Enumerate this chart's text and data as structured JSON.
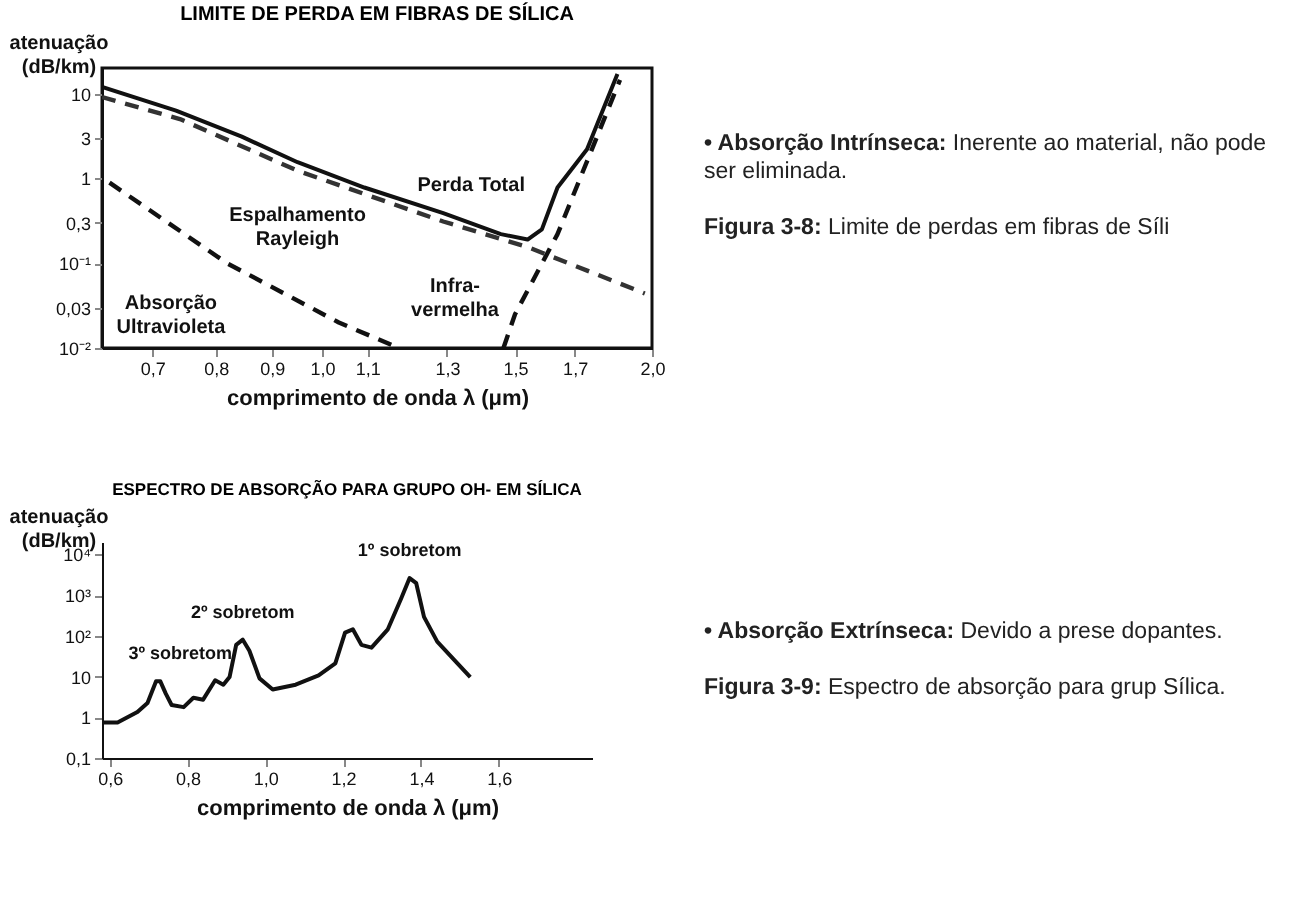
{
  "chart_data": [
    {
      "type": "line",
      "title": "LIMITE DE PERDA EM FIBRAS DE SÍLICA",
      "xlabel": "comprimento de onda λ (μm)",
      "ylabel": "atenuação\n(dB/km)",
      "log": "xy",
      "xlim": [
        0.63,
        2.0
      ],
      "xticks": [
        {
          "value": 0.7,
          "label": "0,7"
        },
        {
          "value": 0.8,
          "label": "0,8"
        },
        {
          "value": 0.9,
          "label": "0,9"
        },
        {
          "value": 1.0,
          "label": "1,0"
        },
        {
          "value": 1.1,
          "label": "1,1"
        },
        {
          "value": 1.3,
          "label": "1,3"
        },
        {
          "value": 1.5,
          "label": "1,5"
        },
        {
          "value": 1.7,
          "label": "1,7"
        },
        {
          "value": 2.0,
          "label": "2,0"
        }
      ],
      "ylim": [
        0.01,
        20
      ],
      "yticks": [
        {
          "value": 0.01,
          "label": "10⁻²"
        },
        {
          "value": 0.03,
          "label": "0,03"
        },
        {
          "value": 0.1,
          "label": "10⁻¹"
        },
        {
          "value": 0.3,
          "label": "0,3"
        },
        1,
        3,
        10
      ],
      "series": [
        {
          "color": "#111111",
          "line_style": "solid",
          "x": [
            0.63,
            0.736,
            0.845,
            0.95,
            1.093,
            1.29,
            1.456,
            1.54,
            1.587,
            1.64,
            1.745,
            1.86
          ],
          "values": [
            12,
            6.3,
            3.1,
            1.55,
            0.78,
            0.39,
            0.22,
            0.19,
            0.25,
            0.78,
            2.2,
            17
          ]
        },
        {
          "color": "#333333",
          "line_style": "dashed",
          "x": [
            0.63,
            0.742,
            0.95,
            1.29,
            1.54,
            1.97
          ],
          "values": [
            9.1,
            5.0,
            1.23,
            0.31,
            0.155,
            0.044
          ]
        },
        {
          "color": "#111111",
          "line_style": "dashed",
          "x": [
            0.64,
            0.819,
            1.036,
            1.175
          ],
          "values": [
            0.89,
            0.1,
            0.02,
            0.01
          ]
        },
        {
          "color": "#111111",
          "line_style": "dashed",
          "x": [
            1.464,
            1.5,
            1.64,
            1.87
          ],
          "values": [
            0.01,
            0.025,
            0.22,
            14.5
          ]
        }
      ],
      "annotations": [
        {
          "text": "Perda Total",
          "x": 1.29,
          "y": 0.39
        },
        {
          "text": "Espalhamento\nRayleigh",
          "x": 0.95,
          "y": 1.23
        },
        {
          "text": "Absorção\nUltravioleta",
          "x": 0.819,
          "y": 0.1
        },
        {
          "text": "Infra-\nvermelha",
          "x": 1.5,
          "y": 0.025
        },
        "• Absorção Intrínseca: Inerente ao material, não pode ser eliminada.",
        "Figura 3-8: Limite de perdas em fibras de Síli"
      ]
    },
    {
      "type": "line",
      "title": "ESPECTRO DE ABSORÇÃO PARA GRUPO OH- EM SÍLICA",
      "xlabel": "comprimento de onda λ (μm)",
      "ylabel": "atenuação\n(dB/km)",
      "log": "y",
      "xlim": [
        0.58,
        1.84
      ],
      "xticks": [
        {
          "value": 0.6,
          "label": "0,6"
        },
        {
          "value": 0.8,
          "label": "0,8"
        },
        {
          "value": 1.0,
          "label": "1,0"
        },
        {
          "value": 1.2,
          "label": "1,2"
        },
        {
          "value": 1.4,
          "label": "1,4"
        },
        {
          "value": 1.6,
          "label": "1,6"
        }
      ],
      "ylim": [
        0.1,
        20000
      ],
      "yticks": [
        {
          "value": 0.1,
          "label": "0,1"
        },
        1,
        10,
        {
          "value": 100,
          "label": "10²"
        },
        {
          "value": 1000,
          "label": "10³"
        },
        {
          "value": 10000,
          "label": "10⁴"
        }
      ],
      "series": [
        {
          "color": "#111111",
          "x": [
            0.58,
            0.62,
            0.671,
            0.697,
            0.719,
            0.73,
            0.744,
            0.759,
            0.79,
            0.815,
            0.84,
            0.871,
            0.892,
            0.908,
            0.925,
            0.942,
            0.959,
            0.985,
            1.019,
            1.078,
            1.137,
            1.18,
            1.205,
            1.225,
            1.247,
            1.273,
            1.315,
            1.349,
            1.371,
            1.388,
            1.408,
            1.442,
            1.485,
            1.527
          ],
          "values": [
            0.74,
            0.74,
            1.34,
            2.25,
            7.6,
            7.6,
            3.8,
            2.0,
            1.77,
            3.0,
            2.7,
            8.1,
            6.3,
            9.7,
            60,
            80,
            43,
            9.0,
            4.8,
            6.3,
            10.7,
            21,
            120,
            144,
            60,
            51,
            144,
            810,
            2600,
            1950,
            290,
            72,
            26,
            9.7
          ]
        }
      ],
      "annotations": [
        {
          "text": "3º sobretom",
          "x": 0.73,
          "y": 7.6
        },
        {
          "text": "2º sobretom",
          "x": 0.942,
          "y": 80
        },
        {
          "text": "1º sobretom",
          "x": 1.371,
          "y": 2600
        },
        "• Absorção Extrínseca: Devido a prese dopantes.",
        "Figura 3-9: Espectro de absorção para grup Sílica."
      ]
    }
  ]
}
